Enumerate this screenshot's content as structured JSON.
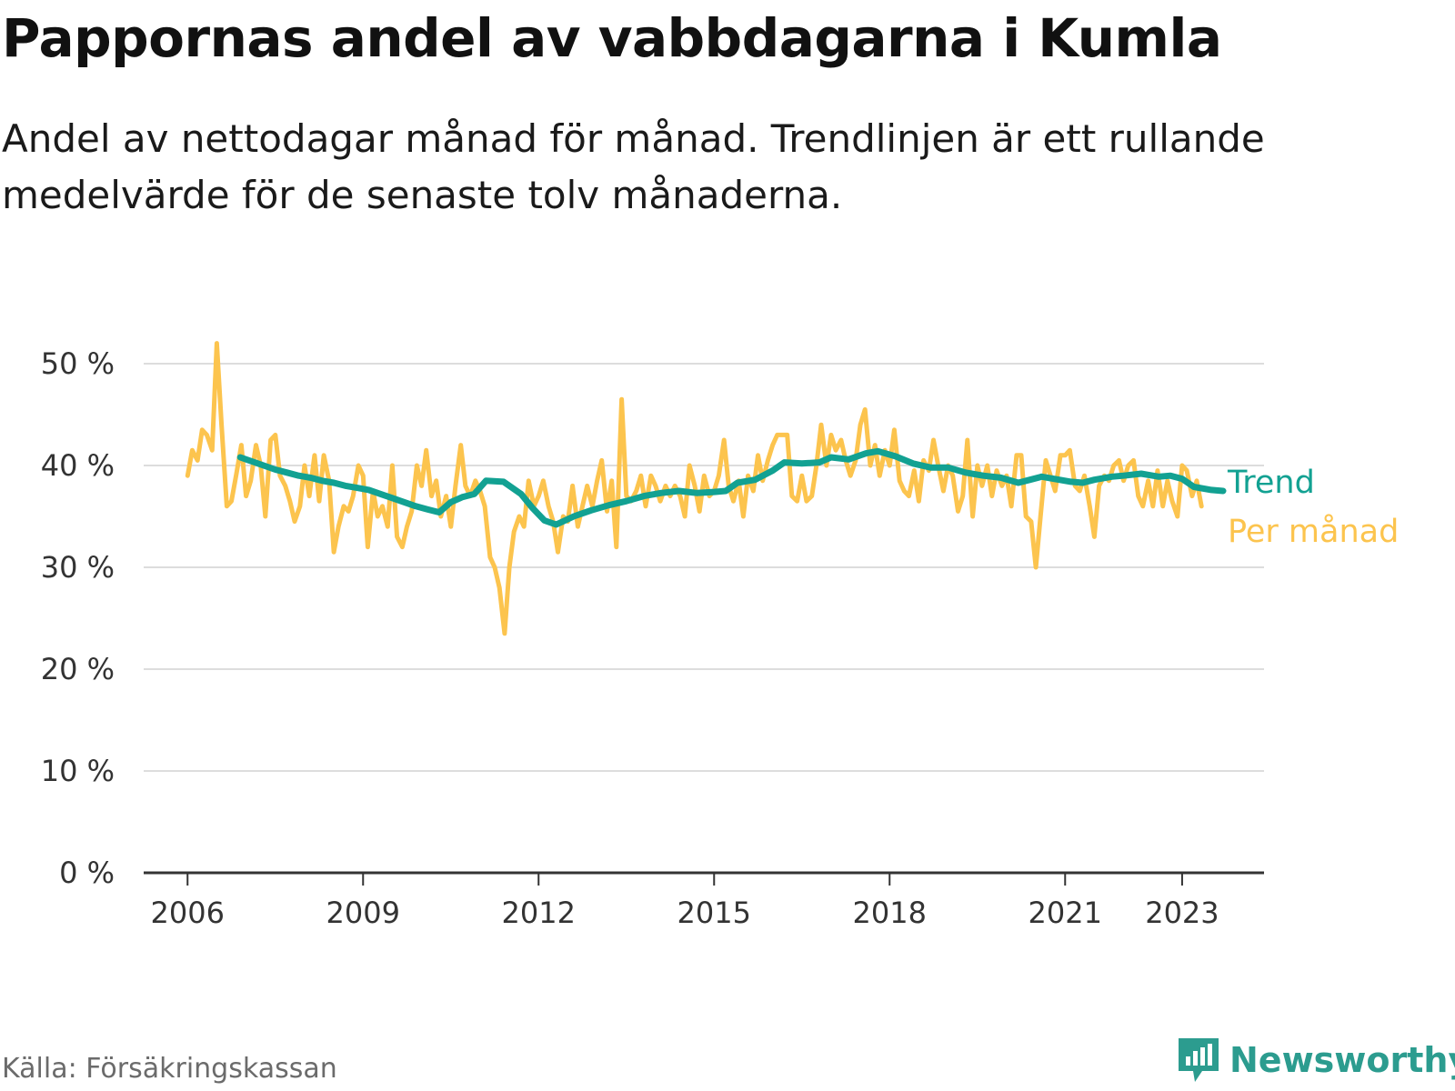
{
  "header": {
    "title": "Pappornas andel av vabbdagarna i Kumla",
    "subtitle": "Andel av nettodagar månad för månad. Trendlinjen är ett rullande medelvärde för de senaste tolv månaderna."
  },
  "footer": {
    "source": "Källa: Försäkringskassan",
    "brand": "Newsworthy"
  },
  "colors": {
    "trend": "#12a192",
    "monthly": "#fcc44e",
    "grid": "#dddddd",
    "axis": "#333333",
    "brand": "#2c9c8f"
  },
  "chart_data": {
    "type": "line",
    "ylim": [
      0,
      50
    ],
    "xlim": [
      2005.25,
      2024.4
    ],
    "yticks": [
      0,
      10,
      20,
      30,
      40,
      50
    ],
    "ytick_labels": [
      "0 %",
      "10 %",
      "20 %",
      "30 %",
      "40 %",
      "50 %"
    ],
    "xticks": [
      2006,
      2009,
      2012,
      2015,
      2018,
      2021,
      2023
    ],
    "xtick_labels": [
      "2006",
      "2009",
      "2012",
      "2015",
      "2018",
      "2021",
      "2023"
    ],
    "grid": true,
    "legend_placement": "right, at line ends",
    "series": [
      {
        "name": "Trend",
        "points": [
          [
            2006.9,
            40.8
          ],
          [
            2007.1,
            40.4
          ],
          [
            2007.3,
            40.0
          ],
          [
            2007.5,
            39.6
          ],
          [
            2007.7,
            39.3
          ],
          [
            2007.9,
            39.0
          ],
          [
            2008.1,
            38.8
          ],
          [
            2008.3,
            38.5
          ],
          [
            2008.5,
            38.3
          ],
          [
            2008.7,
            38.0
          ],
          [
            2008.9,
            37.8
          ],
          [
            2009.1,
            37.6
          ],
          [
            2009.3,
            37.2
          ],
          [
            2009.5,
            36.8
          ],
          [
            2009.7,
            36.4
          ],
          [
            2009.9,
            36.0
          ],
          [
            2010.1,
            35.7
          ],
          [
            2010.3,
            35.4
          ],
          [
            2010.5,
            36.4
          ],
          [
            2010.7,
            36.9
          ],
          [
            2010.9,
            37.2
          ],
          [
            2011.1,
            38.5
          ],
          [
            2011.4,
            38.4
          ],
          [
            2011.7,
            37.2
          ],
          [
            2011.9,
            35.8
          ],
          [
            2012.1,
            34.6
          ],
          [
            2012.3,
            34.2
          ],
          [
            2012.6,
            35.0
          ],
          [
            2012.9,
            35.6
          ],
          [
            2013.2,
            36.1
          ],
          [
            2013.5,
            36.5
          ],
          [
            2013.8,
            37.0
          ],
          [
            2014.1,
            37.3
          ],
          [
            2014.4,
            37.5
          ],
          [
            2014.7,
            37.3
          ],
          [
            2015.0,
            37.4
          ],
          [
            2015.2,
            37.5
          ],
          [
            2015.4,
            38.3
          ],
          [
            2015.7,
            38.6
          ],
          [
            2016.0,
            39.5
          ],
          [
            2016.2,
            40.3
          ],
          [
            2016.5,
            40.2
          ],
          [
            2016.8,
            40.3
          ],
          [
            2017.0,
            40.8
          ],
          [
            2017.3,
            40.6
          ],
          [
            2017.6,
            41.2
          ],
          [
            2017.8,
            41.4
          ],
          [
            2018.1,
            40.9
          ],
          [
            2018.4,
            40.2
          ],
          [
            2018.7,
            39.8
          ],
          [
            2019.0,
            39.8
          ],
          [
            2019.3,
            39.3
          ],
          [
            2019.6,
            39.0
          ],
          [
            2019.9,
            38.8
          ],
          [
            2020.2,
            38.3
          ],
          [
            2020.4,
            38.6
          ],
          [
            2020.6,
            38.9
          ],
          [
            2020.9,
            38.6
          ],
          [
            2021.1,
            38.4
          ],
          [
            2021.3,
            38.3
          ],
          [
            2021.5,
            38.6
          ],
          [
            2021.8,
            38.9
          ],
          [
            2022.0,
            39.0
          ],
          [
            2022.3,
            39.2
          ],
          [
            2022.6,
            38.9
          ],
          [
            2022.8,
            39.0
          ],
          [
            2023.0,
            38.7
          ],
          [
            2023.2,
            37.9
          ],
          [
            2023.5,
            37.6
          ],
          [
            2023.7,
            37.5
          ]
        ]
      },
      {
        "name": "Per månad",
        "points": [
          [
            2006.0,
            39.0
          ],
          [
            2006.08,
            41.5
          ],
          [
            2006.17,
            40.5
          ],
          [
            2006.25,
            43.5
          ],
          [
            2006.33,
            43.0
          ],
          [
            2006.42,
            41.5
          ],
          [
            2006.5,
            52.0
          ],
          [
            2006.58,
            44.0
          ],
          [
            2006.67,
            36.0
          ],
          [
            2006.75,
            36.5
          ],
          [
            2006.83,
            39.0
          ],
          [
            2006.92,
            42.0
          ],
          [
            2007.0,
            37.0
          ],
          [
            2007.08,
            38.5
          ],
          [
            2007.17,
            42.0
          ],
          [
            2007.25,
            40.0
          ],
          [
            2007.33,
            35.0
          ],
          [
            2007.42,
            42.5
          ],
          [
            2007.5,
            43.0
          ],
          [
            2007.58,
            39.0
          ],
          [
            2007.67,
            38.0
          ],
          [
            2007.75,
            36.5
          ],
          [
            2007.83,
            34.5
          ],
          [
            2007.92,
            36.0
          ],
          [
            2008.0,
            40.0
          ],
          [
            2008.08,
            37.0
          ],
          [
            2008.17,
            41.0
          ],
          [
            2008.25,
            36.5
          ],
          [
            2008.33,
            41.0
          ],
          [
            2008.42,
            38.5
          ],
          [
            2008.5,
            31.5
          ],
          [
            2008.58,
            34.0
          ],
          [
            2008.67,
            36.0
          ],
          [
            2008.75,
            35.5
          ],
          [
            2008.83,
            37.0
          ],
          [
            2008.92,
            40.0
          ],
          [
            2009.0,
            39.0
          ],
          [
            2009.08,
            32.0
          ],
          [
            2009.17,
            37.5
          ],
          [
            2009.25,
            35.0
          ],
          [
            2009.33,
            36.0
          ],
          [
            2009.42,
            34.0
          ],
          [
            2009.5,
            40.0
          ],
          [
            2009.58,
            33.0
          ],
          [
            2009.67,
            32.0
          ],
          [
            2009.75,
            34.0
          ],
          [
            2009.83,
            35.5
          ],
          [
            2009.92,
            40.0
          ],
          [
            2010.0,
            38.0
          ],
          [
            2010.08,
            41.5
          ],
          [
            2010.17,
            37.0
          ],
          [
            2010.25,
            38.5
          ],
          [
            2010.33,
            35.0
          ],
          [
            2010.42,
            37.0
          ],
          [
            2010.5,
            34.0
          ],
          [
            2010.58,
            38.0
          ],
          [
            2010.67,
            42.0
          ],
          [
            2010.75,
            38.0
          ],
          [
            2010.83,
            37.0
          ],
          [
            2010.92,
            38.5
          ],
          [
            2011.0,
            37.5
          ],
          [
            2011.08,
            36.0
          ],
          [
            2011.17,
            31.0
          ],
          [
            2011.25,
            30.0
          ],
          [
            2011.33,
            28.0
          ],
          [
            2011.42,
            23.5
          ],
          [
            2011.5,
            30.0
          ],
          [
            2011.58,
            33.5
          ],
          [
            2011.67,
            35.0
          ],
          [
            2011.75,
            34.0
          ],
          [
            2011.83,
            38.5
          ],
          [
            2011.92,
            36.0
          ],
          [
            2012.0,
            37.0
          ],
          [
            2012.08,
            38.5
          ],
          [
            2012.17,
            36.0
          ],
          [
            2012.25,
            34.5
          ],
          [
            2012.33,
            31.5
          ],
          [
            2012.42,
            35.0
          ],
          [
            2012.5,
            34.5
          ],
          [
            2012.58,
            38.0
          ],
          [
            2012.67,
            34.0
          ],
          [
            2012.75,
            36.0
          ],
          [
            2012.83,
            38.0
          ],
          [
            2012.92,
            36.0
          ],
          [
            2013.0,
            38.5
          ],
          [
            2013.08,
            40.5
          ],
          [
            2013.17,
            35.5
          ],
          [
            2013.25,
            38.5
          ],
          [
            2013.33,
            32.0
          ],
          [
            2013.42,
            46.5
          ],
          [
            2013.5,
            37.0
          ],
          [
            2013.58,
            36.5
          ],
          [
            2013.67,
            37.5
          ],
          [
            2013.75,
            39.0
          ],
          [
            2013.83,
            36.0
          ],
          [
            2013.92,
            39.0
          ],
          [
            2014.0,
            38.0
          ],
          [
            2014.08,
            36.5
          ],
          [
            2014.17,
            38.0
          ],
          [
            2014.25,
            37.0
          ],
          [
            2014.33,
            38.0
          ],
          [
            2014.42,
            37.0
          ],
          [
            2014.5,
            35.0
          ],
          [
            2014.58,
            40.0
          ],
          [
            2014.67,
            38.0
          ],
          [
            2014.75,
            35.5
          ],
          [
            2014.83,
            39.0
          ],
          [
            2014.92,
            37.0
          ],
          [
            2015.0,
            37.5
          ],
          [
            2015.08,
            39.0
          ],
          [
            2015.17,
            42.5
          ],
          [
            2015.25,
            38.0
          ],
          [
            2015.33,
            36.5
          ],
          [
            2015.42,
            38.5
          ],
          [
            2015.5,
            35.0
          ],
          [
            2015.58,
            39.0
          ],
          [
            2015.67,
            37.5
          ],
          [
            2015.75,
            41.0
          ],
          [
            2015.83,
            38.5
          ],
          [
            2015.92,
            40.5
          ],
          [
            2016.0,
            42.0
          ],
          [
            2016.08,
            43.0
          ],
          [
            2016.17,
            43.0
          ],
          [
            2016.25,
            43.0
          ],
          [
            2016.33,
            37.0
          ],
          [
            2016.42,
            36.5
          ],
          [
            2016.5,
            39.0
          ],
          [
            2016.58,
            36.5
          ],
          [
            2016.67,
            37.0
          ],
          [
            2016.75,
            40.0
          ],
          [
            2016.83,
            44.0
          ],
          [
            2016.92,
            40.0
          ],
          [
            2017.0,
            43.0
          ],
          [
            2017.08,
            41.5
          ],
          [
            2017.17,
            42.5
          ],
          [
            2017.25,
            40.5
          ],
          [
            2017.33,
            39.0
          ],
          [
            2017.42,
            40.5
          ],
          [
            2017.5,
            44.0
          ],
          [
            2017.58,
            45.5
          ],
          [
            2017.67,
            40.0
          ],
          [
            2017.75,
            42.0
          ],
          [
            2017.83,
            39.0
          ],
          [
            2017.92,
            41.5
          ],
          [
            2018.0,
            40.0
          ],
          [
            2018.08,
            43.5
          ],
          [
            2018.17,
            38.5
          ],
          [
            2018.25,
            37.5
          ],
          [
            2018.33,
            37.0
          ],
          [
            2018.42,
            39.5
          ],
          [
            2018.5,
            36.5
          ],
          [
            2018.58,
            40.5
          ],
          [
            2018.67,
            39.5
          ],
          [
            2018.75,
            42.5
          ],
          [
            2018.83,
            40.0
          ],
          [
            2018.92,
            37.5
          ],
          [
            2019.0,
            40.0
          ],
          [
            2019.08,
            39.0
          ],
          [
            2019.17,
            35.5
          ],
          [
            2019.25,
            37.0
          ],
          [
            2019.33,
            42.5
          ],
          [
            2019.42,
            35.0
          ],
          [
            2019.5,
            40.0
          ],
          [
            2019.58,
            38.0
          ],
          [
            2019.67,
            40.0
          ],
          [
            2019.75,
            37.0
          ],
          [
            2019.83,
            39.5
          ],
          [
            2019.92,
            38.0
          ],
          [
            2020.0,
            39.0
          ],
          [
            2020.08,
            36.0
          ],
          [
            2020.17,
            41.0
          ],
          [
            2020.25,
            41.0
          ],
          [
            2020.33,
            35.0
          ],
          [
            2020.42,
            34.5
          ],
          [
            2020.5,
            30.0
          ],
          [
            2020.58,
            35.0
          ],
          [
            2020.67,
            40.5
          ],
          [
            2020.75,
            39.0
          ],
          [
            2020.83,
            37.5
          ],
          [
            2020.92,
            41.0
          ],
          [
            2021.0,
            41.0
          ],
          [
            2021.08,
            41.5
          ],
          [
            2021.17,
            38.0
          ],
          [
            2021.25,
            37.5
          ],
          [
            2021.33,
            39.0
          ],
          [
            2021.42,
            36.0
          ],
          [
            2021.5,
            33.0
          ],
          [
            2021.58,
            38.0
          ],
          [
            2021.67,
            39.0
          ],
          [
            2021.75,
            38.5
          ],
          [
            2021.83,
            40.0
          ],
          [
            2021.92,
            40.5
          ],
          [
            2022.0,
            38.5
          ],
          [
            2022.08,
            40.0
          ],
          [
            2022.17,
            40.5
          ],
          [
            2022.25,
            37.0
          ],
          [
            2022.33,
            36.0
          ],
          [
            2022.42,
            38.5
          ],
          [
            2022.5,
            36.0
          ],
          [
            2022.58,
            39.5
          ],
          [
            2022.67,
            36.0
          ],
          [
            2022.75,
            38.5
          ],
          [
            2022.83,
            36.5
          ],
          [
            2022.92,
            35.0
          ],
          [
            2023.0,
            40.0
          ],
          [
            2023.08,
            39.5
          ],
          [
            2023.17,
            37.0
          ],
          [
            2023.25,
            38.5
          ],
          [
            2023.33,
            36.0
          ]
        ]
      }
    ]
  }
}
